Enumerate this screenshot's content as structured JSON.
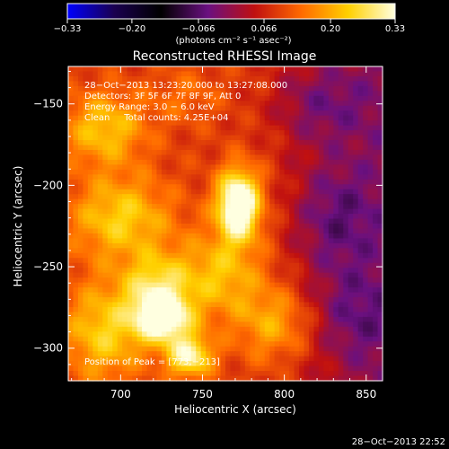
{
  "chart_data": {
    "type": "heatmap",
    "title": "Reconstructed RHESSI Image",
    "xlabel": "Heliocentric X (arcsec)",
    "ylabel": "Heliocentric Y (arcsec)",
    "xlim": [
      668,
      860
    ],
    "ylim": [
      -320,
      -127
    ],
    "x_ticks": [
      700,
      750,
      800,
      850
    ],
    "y_ticks": [
      -150,
      -200,
      -250,
      -300
    ],
    "colorbar": {
      "range": [
        -0.33,
        0.33
      ],
      "ticks": [
        {
          "value": -0.33,
          "label": "−0.33"
        },
        {
          "value": -0.2,
          "label": "−0.20"
        },
        {
          "value": -0.066,
          "label": "−0.066"
        },
        {
          "value": 0.066,
          "label": "0.066"
        },
        {
          "value": 0.2,
          "label": "0.20"
        },
        {
          "value": 0.33,
          "label": "0.33"
        }
      ],
      "units": "(photons cm⁻² s⁻¹ asec⁻²)",
      "colormap": [
        "#0000ff",
        "#1a0050",
        "#000000",
        "#6a1080",
        "#c01010",
        "#ff6a00",
        "#ffd000",
        "#ffffe0"
      ]
    },
    "info_lines": [
      "28−Oct−2013 13:23:20.000 to 13:27:08.000",
      "Detectors: 3F 5F 6F 7F 8F 9F, Att 0",
      "Energy Range: 3.0 − 6.0 keV",
      "Clean     Total counts: 4.25E+04"
    ],
    "peak_label": "Position of Peak = [773,−213]",
    "peak_position": [
      773,
      -213
    ],
    "sources": [
      {
        "x": 772,
        "y": -212,
        "amp": 0.33,
        "sx": 9,
        "sy": 15
      },
      {
        "x": 726,
        "y": -282,
        "amp": 0.27,
        "sx": 12,
        "sy": 10
      },
      {
        "x": 742,
        "y": -305,
        "amp": 0.22,
        "sx": 10,
        "sy": 9
      },
      {
        "x": 722,
        "y": -262,
        "amp": 0.16,
        "sx": 14,
        "sy": 14
      },
      {
        "x": 690,
        "y": -165,
        "amp": 0.14,
        "sx": 18,
        "sy": 16
      },
      {
        "x": 700,
        "y": -220,
        "amp": 0.15,
        "sx": 22,
        "sy": 18
      },
      {
        "x": 690,
        "y": -290,
        "amp": 0.15,
        "sx": 18,
        "sy": 22
      },
      {
        "x": 760,
        "y": -255,
        "amp": 0.13,
        "sx": 18,
        "sy": 18
      },
      {
        "x": 795,
        "y": -285,
        "amp": 0.11,
        "sx": 18,
        "sy": 16
      },
      {
        "x": 820,
        "y": -150,
        "amp": -0.08,
        "sx": 22,
        "sy": 18
      },
      {
        "x": 830,
        "y": -220,
        "amp": -0.09,
        "sx": 18,
        "sy": 24
      },
      {
        "x": 840,
        "y": -280,
        "amp": -0.07,
        "sx": 18,
        "sy": 20
      },
      {
        "x": 740,
        "y": -145,
        "amp": 0.05,
        "sx": 16,
        "sy": 12
      }
    ],
    "baseline": 0.09,
    "grid": false
  },
  "timestamp": "28−Oct−2013 22:52"
}
